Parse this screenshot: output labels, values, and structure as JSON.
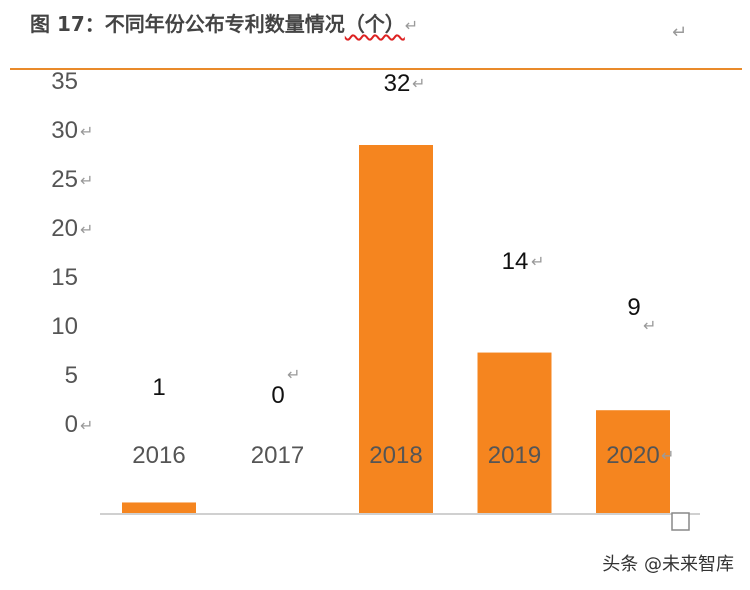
{
  "header": {
    "title": "图 17：不同年份公布专利数量情况",
    "unit": "（个）",
    "paragraph_mark": "↵",
    "corner_mark": "↵"
  },
  "chart_data": {
    "type": "bar",
    "categories": [
      "2016",
      "2017",
      "2018",
      "2019",
      "2020"
    ],
    "values": [
      1,
      0,
      32,
      14,
      9
    ],
    "yticks": [
      "0",
      "5",
      "10",
      "15",
      "20",
      "25",
      "30",
      "35"
    ],
    "ylim": [
      0,
      35
    ],
    "bar_color": "#f5851f",
    "axis_color": "#d0d0d0",
    "legend": "none",
    "grid": false
  },
  "watermark": "头条 @未来智库"
}
